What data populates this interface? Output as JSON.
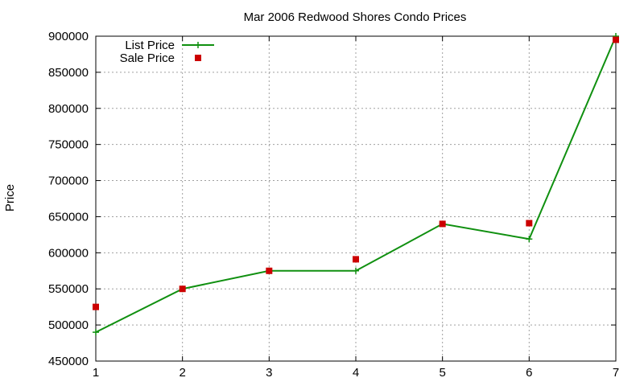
{
  "chart_data": {
    "type": "line",
    "title": "Mar 2006 Redwood Shores Condo Prices",
    "xlabel": "",
    "ylabel": "Price",
    "xlim": [
      1,
      7
    ],
    "ylim": [
      450000,
      900000
    ],
    "xticks": [
      1,
      2,
      3,
      4,
      5,
      6,
      7
    ],
    "yticks": [
      450000,
      500000,
      550000,
      600000,
      650000,
      700000,
      750000,
      800000,
      850000,
      900000
    ],
    "grid": true,
    "legend_position": "top-left",
    "series": [
      {
        "name": "List Price",
        "style": "linespoints",
        "marker": "plus",
        "color": "#109010",
        "x": [
          1,
          2,
          3,
          4,
          5,
          6,
          7
        ],
        "y": [
          490000,
          550000,
          575000,
          575000,
          640000,
          619000,
          900000
        ]
      },
      {
        "name": "Sale Price",
        "style": "points",
        "marker": "square",
        "color": "#cc0000",
        "x": [
          1,
          2,
          3,
          4,
          5,
          6,
          7
        ],
        "y": [
          525000,
          550000,
          575000,
          591000,
          640000,
          641000,
          895000
        ]
      }
    ]
  }
}
